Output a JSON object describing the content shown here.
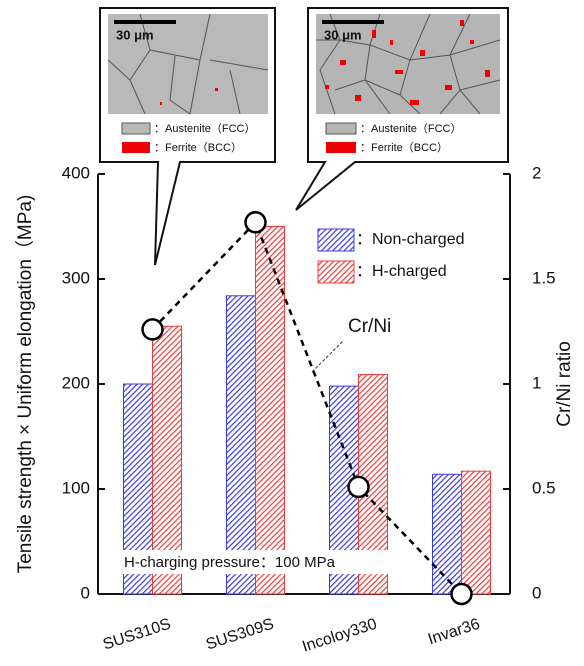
{
  "chart_data": {
    "type": "bar",
    "y_label": "Tensile strength × Uniform elongation（MPa)",
    "y2_label": "Cr/Ni ratio",
    "categories": [
      "SUS310S",
      "SUS309S",
      "Incoloy330",
      "Invar36"
    ],
    "series": [
      {
        "name": "：Non-charged",
        "color": "#3a3ae0",
        "values": [
          200,
          284,
          198,
          114
        ]
      },
      {
        "name": "：H-charged",
        "color": "#ee3a3a",
        "values": [
          255,
          350,
          209,
          117
        ]
      },
      {
        "name": "Cr/Ni",
        "type": "line",
        "axis": "y2",
        "color": "#000000",
        "values": [
          1.26,
          1.77,
          0.51,
          0
        ]
      }
    ],
    "ylim": [
      0,
      400
    ],
    "yticks": [
      0,
      100,
      200,
      300,
      400
    ],
    "y2lim": [
      0,
      2
    ],
    "y2ticks": [
      0,
      0.5,
      1,
      {
        "value": 1.5,
        "label": "1.5"
      },
      2
    ],
    "annotation": "H-charging pressure：100 MPa",
    "insets": [
      {
        "scale": "30 μm",
        "legend": [
          "：Austenite（FCC）",
          "：Ferrite（BCC）"
        ]
      },
      {
        "scale": "30 μm",
        "legend": [
          "：Austenite（FCC）",
          "：Ferrite（BCC）"
        ]
      }
    ]
  }
}
